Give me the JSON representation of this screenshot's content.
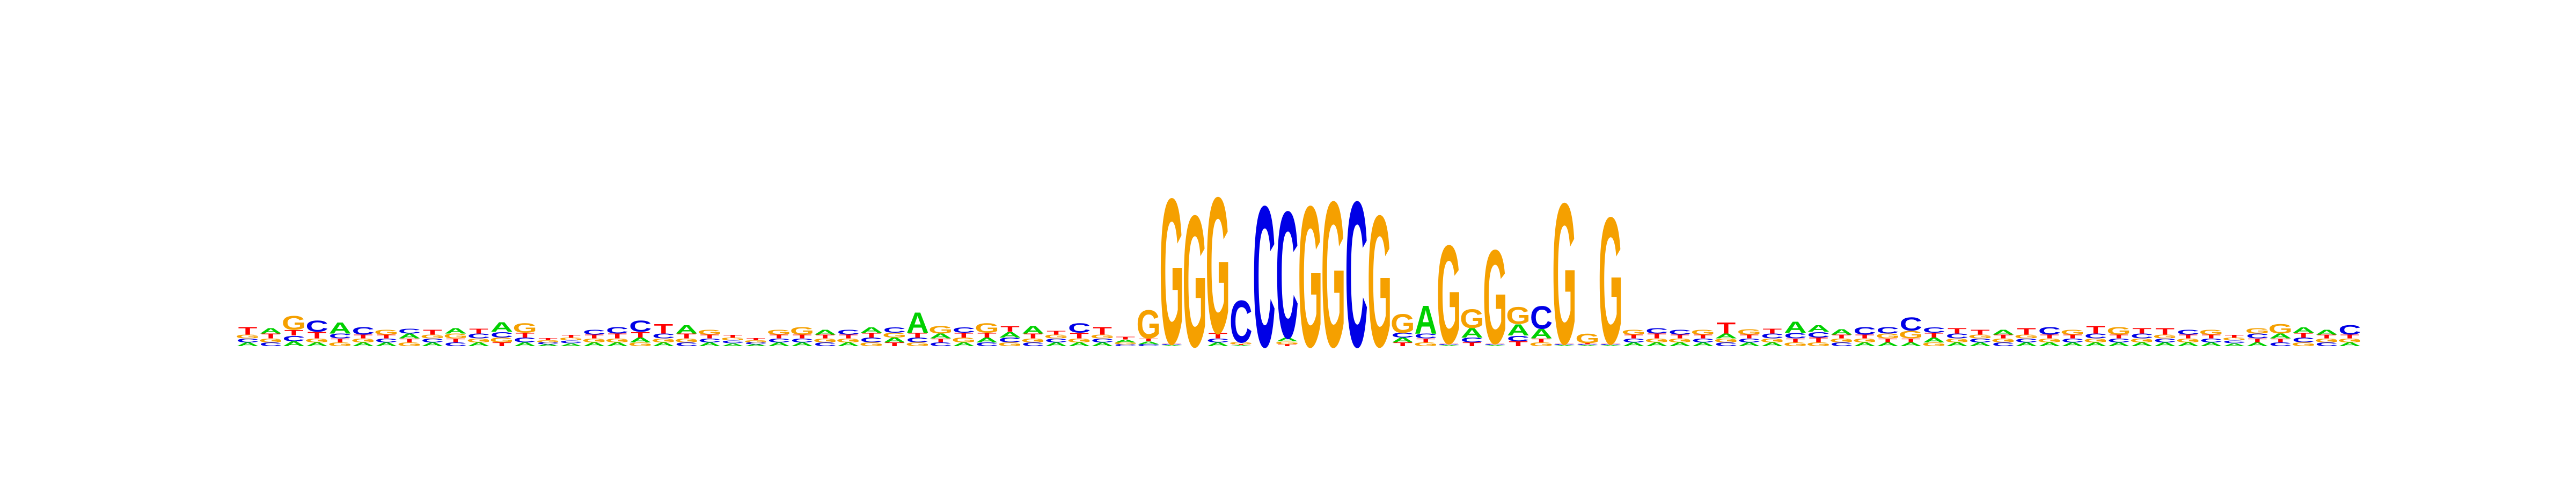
{
  "chart_data": {
    "type": "sequence-logo",
    "title": "",
    "xlabel": "",
    "ylabel": "",
    "alphabet": [
      "A",
      "C",
      "G",
      "T"
    ],
    "colors": {
      "A": "#00d000",
      "C": "#0000e6",
      "G": "#f5a000",
      "T": "#ff0000"
    },
    "ylim": [
      0,
      2
    ],
    "positions": [
      {
        "A": 0.04,
        "C": 0.04,
        "G": 0.04,
        "T": 0.08
      },
      {
        "A": 0.06,
        "C": 0.04,
        "G": 0.04,
        "T": 0.05
      },
      {
        "A": 0.05,
        "C": 0.06,
        "G": 0.15,
        "T": 0.06
      },
      {
        "A": 0.04,
        "C": 0.12,
        "G": 0.04,
        "T": 0.07
      },
      {
        "A": 0.12,
        "C": 0.05,
        "G": 0.04,
        "T": 0.04
      },
      {
        "A": 0.04,
        "C": 0.08,
        "G": 0.04,
        "T": 0.04
      },
      {
        "A": 0.04,
        "C": 0.04,
        "G": 0.05,
        "T": 0.04
      },
      {
        "A": 0.05,
        "C": 0.05,
        "G": 0.04,
        "T": 0.04
      },
      {
        "A": 0.04,
        "C": 0.04,
        "G": 0.04,
        "T": 0.05
      },
      {
        "A": 0.06,
        "C": 0.04,
        "G": 0.05,
        "T": 0.04
      },
      {
        "A": 0.04,
        "C": 0.05,
        "G": 0.04,
        "T": 0.05
      },
      {
        "A": 0.1,
        "C": 0.06,
        "G": 0.05,
        "T": 0.04
      },
      {
        "A": 0.04,
        "C": 0.05,
        "G": 0.1,
        "T": 0.05
      },
      {
        "A": 0.02,
        "C": 0.02,
        "G": 0.02,
        "T": 0.02
      },
      {
        "A": 0.03,
        "C": 0.03,
        "G": 0.03,
        "T": 0.03
      },
      {
        "A": 0.04,
        "C": 0.05,
        "G": 0.04,
        "T": 0.04
      },
      {
        "A": 0.04,
        "C": 0.07,
        "G": 0.04,
        "T": 0.05
      },
      {
        "A": 0.05,
        "C": 0.12,
        "G": 0.04,
        "T": 0.06
      },
      {
        "A": 0.04,
        "C": 0.05,
        "G": 0.04,
        "T": 0.1
      },
      {
        "A": 0.09,
        "C": 0.04,
        "G": 0.04,
        "T": 0.05
      },
      {
        "A": 0.04,
        "C": 0.04,
        "G": 0.05,
        "T": 0.04
      },
      {
        "A": 0.03,
        "C": 0.03,
        "G": 0.03,
        "T": 0.03
      },
      {
        "A": 0.02,
        "C": 0.02,
        "G": 0.02,
        "T": 0.02
      },
      {
        "A": 0.04,
        "C": 0.04,
        "G": 0.05,
        "T": 0.04
      },
      {
        "A": 0.04,
        "C": 0.04,
        "G": 0.08,
        "T": 0.04
      },
      {
        "A": 0.05,
        "C": 0.04,
        "G": 0.04,
        "T": 0.04
      },
      {
        "A": 0.04,
        "C": 0.05,
        "G": 0.04,
        "T": 0.04
      },
      {
        "A": 0.06,
        "C": 0.05,
        "G": 0.04,
        "T": 0.05
      },
      {
        "A": 0.05,
        "C": 0.06,
        "G": 0.05,
        "T": 0.04
      },
      {
        "A": 0.22,
        "C": 0.05,
        "G": 0.04,
        "T": 0.05
      },
      {
        "A": 0.05,
        "C": 0.04,
        "G": 0.08,
        "T": 0.04
      },
      {
        "A": 0.04,
        "C": 0.06,
        "G": 0.05,
        "T": 0.05
      },
      {
        "A": 0.05,
        "C": 0.04,
        "G": 0.1,
        "T": 0.05
      },
      {
        "A": 0.06,
        "C": 0.05,
        "G": 0.04,
        "T": 0.06
      },
      {
        "A": 0.08,
        "C": 0.04,
        "G": 0.04,
        "T": 0.05
      },
      {
        "A": 0.04,
        "C": 0.04,
        "G": 0.04,
        "T": 0.04
      },
      {
        "A": 0.04,
        "C": 0.1,
        "G": 0.04,
        "T": 0.06
      },
      {
        "A": 0.04,
        "C": 0.04,
        "G": 0.04,
        "T": 0.08
      },
      {
        "A": 0.03,
        "C": 0.02,
        "G": 0.02,
        "T": 0.03
      },
      {
        "A": 0.03,
        "C": 0.02,
        "G": 0.3,
        "T": 0.03
      },
      {
        "A": 0.01,
        "C": 0.01,
        "G": 1.55,
        "T": 0.01
      },
      {
        "A": 0.0,
        "C": 0.0,
        "G": 1.4,
        "T": 0.0
      },
      {
        "A": 0.04,
        "C": 0.04,
        "G": 1.45,
        "T": 0.06
      },
      {
        "A": 0.01,
        "C": 0.45,
        "G": 0.02,
        "T": 0.01
      },
      {
        "A": 0.0,
        "C": 1.5,
        "G": 0.0,
        "T": 0.0
      },
      {
        "A": 0.04,
        "C": 1.35,
        "G": 0.03,
        "T": 0.02
      },
      {
        "A": 0.0,
        "C": 0.0,
        "G": 1.5,
        "T": 0.0
      },
      {
        "A": 0.0,
        "C": 0.0,
        "G": 1.55,
        "T": 0.0
      },
      {
        "A": 0.0,
        "C": 1.55,
        "G": 0.0,
        "T": 0.0
      },
      {
        "A": 0.0,
        "C": 0.0,
        "G": 1.4,
        "T": 0.0
      },
      {
        "A": 0.05,
        "C": 0.05,
        "G": 0.2,
        "T": 0.04
      },
      {
        "A": 0.3,
        "C": 0.05,
        "G": 0.04,
        "T": 0.04
      },
      {
        "A": 0.01,
        "C": 0.01,
        "G": 1.05,
        "T": 0.01
      },
      {
        "A": 0.1,
        "C": 0.05,
        "G": 0.2,
        "T": 0.04
      },
      {
        "A": 0.01,
        "C": 0.01,
        "G": 1.0,
        "T": 0.01
      },
      {
        "A": 0.12,
        "C": 0.06,
        "G": 0.18,
        "T": 0.05
      },
      {
        "A": 0.1,
        "C": 0.24,
        "G": 0.04,
        "T": 0.04
      },
      {
        "A": 0.01,
        "C": 0.01,
        "G": 1.5,
        "T": 0.01
      },
      {
        "A": 0.01,
        "C": 0.01,
        "G": 0.1,
        "T": 0.01
      },
      {
        "A": 0.01,
        "C": 0.01,
        "G": 1.35,
        "T": 0.01
      },
      {
        "A": 0.04,
        "C": 0.04,
        "G": 0.05,
        "T": 0.04
      },
      {
        "A": 0.04,
        "C": 0.06,
        "G": 0.04,
        "T": 0.05
      },
      {
        "A": 0.04,
        "C": 0.05,
        "G": 0.04,
        "T": 0.04
      },
      {
        "A": 0.04,
        "C": 0.04,
        "G": 0.05,
        "T": 0.04
      },
      {
        "A": 0.05,
        "C": 0.04,
        "G": 0.04,
        "T": 0.12
      },
      {
        "A": 0.04,
        "C": 0.04,
        "G": 0.06,
        "T": 0.04
      },
      {
        "A": 0.04,
        "C": 0.05,
        "G": 0.04,
        "T": 0.05
      },
      {
        "A": 0.12,
        "C": 0.06,
        "G": 0.04,
        "T": 0.04
      },
      {
        "A": 0.07,
        "C": 0.06,
        "G": 0.04,
        "T": 0.05
      },
      {
        "A": 0.06,
        "C": 0.04,
        "G": 0.04,
        "T": 0.04
      },
      {
        "A": 0.04,
        "C": 0.08,
        "G": 0.04,
        "T": 0.04
      },
      {
        "A": 0.04,
        "C": 0.07,
        "G": 0.05,
        "T": 0.04
      },
      {
        "A": 0.04,
        "C": 0.14,
        "G": 0.08,
        "T": 0.04
      },
      {
        "A": 0.05,
        "C": 0.06,
        "G": 0.04,
        "T": 0.05
      },
      {
        "A": 0.04,
        "C": 0.05,
        "G": 0.04,
        "T": 0.06
      },
      {
        "A": 0.04,
        "C": 0.04,
        "G": 0.04,
        "T": 0.05
      },
      {
        "A": 0.05,
        "C": 0.04,
        "G": 0.04,
        "T": 0.04
      },
      {
        "A": 0.04,
        "C": 0.04,
        "G": 0.04,
        "T": 0.07
      },
      {
        "A": 0.04,
        "C": 0.08,
        "G": 0.04,
        "T": 0.04
      },
      {
        "A": 0.04,
        "C": 0.04,
        "G": 0.05,
        "T": 0.04
      },
      {
        "A": 0.04,
        "C": 0.05,
        "G": 0.04,
        "T": 0.08
      },
      {
        "A": 0.04,
        "C": 0.04,
        "G": 0.08,
        "T": 0.04
      },
      {
        "A": 0.04,
        "C": 0.05,
        "G": 0.04,
        "T": 0.06
      },
      {
        "A": 0.04,
        "C": 0.04,
        "G": 0.04,
        "T": 0.07
      },
      {
        "A": 0.04,
        "C": 0.05,
        "G": 0.04,
        "T": 0.04
      },
      {
        "A": 0.04,
        "C": 0.04,
        "G": 0.05,
        "T": 0.04
      },
      {
        "A": 0.03,
        "C": 0.03,
        "G": 0.03,
        "T": 0.03
      },
      {
        "A": 0.04,
        "C": 0.05,
        "G": 0.06,
        "T": 0.04
      },
      {
        "A": 0.05,
        "C": 0.04,
        "G": 0.1,
        "T": 0.04
      },
      {
        "A": 0.06,
        "C": 0.05,
        "G": 0.04,
        "T": 0.05
      },
      {
        "A": 0.05,
        "C": 0.04,
        "G": 0.04,
        "T": 0.04
      },
      {
        "A": 0.04,
        "C": 0.1,
        "G": 0.04,
        "T": 0.04
      }
    ]
  }
}
